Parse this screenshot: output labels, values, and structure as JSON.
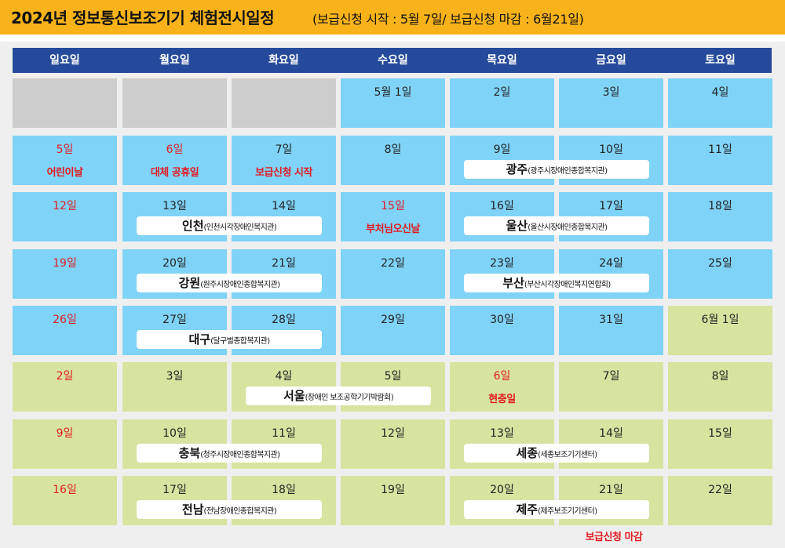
{
  "title": {
    "main": "2024년 정보통신보조기기 체험전시일정",
    "sub": "(보급신청 시작 : 5월 7일/ 보급신청 마감  : 6월21일)"
  },
  "colors": {
    "title_bar": "#f9b31a",
    "header": "#264a9b",
    "may": "#7fd3f7",
    "june": "#d6e4a0",
    "empty": "#cdcdcd",
    "holiday_red": "#e21b23"
  },
  "weekdays": [
    "일요일",
    "월요일",
    "화요일",
    "수요일",
    "목요일",
    "금요일",
    "토요일"
  ],
  "weeks": [
    [
      {
        "type": "empty"
      },
      {
        "type": "empty"
      },
      {
        "type": "empty"
      },
      {
        "label": "5월 1일",
        "month": "may"
      },
      {
        "label": "2일",
        "month": "may"
      },
      {
        "label": "3일",
        "month": "may"
      },
      {
        "label": "4일",
        "month": "may"
      }
    ],
    [
      {
        "label": "5일",
        "month": "may",
        "red": true,
        "event": "어린이날"
      },
      {
        "label": "6일",
        "month": "may",
        "red": true,
        "event": "대체 공휴일"
      },
      {
        "label": "7일",
        "month": "may",
        "event": "보급신청 시작"
      },
      {
        "label": "8일",
        "month": "may"
      },
      {
        "label": "9일",
        "month": "may"
      },
      {
        "label": "10일",
        "month": "may"
      },
      {
        "label": "11일",
        "month": "may"
      }
    ],
    [
      {
        "label": "12일",
        "month": "may",
        "red": true
      },
      {
        "label": "13일",
        "month": "may"
      },
      {
        "label": "14일",
        "month": "may"
      },
      {
        "label": "15일",
        "month": "may",
        "red": true,
        "event": "부처님오신날"
      },
      {
        "label": "16일",
        "month": "may"
      },
      {
        "label": "17일",
        "month": "may"
      },
      {
        "label": "18일",
        "month": "may"
      }
    ],
    [
      {
        "label": "19일",
        "month": "may",
        "red": true
      },
      {
        "label": "20일",
        "month": "may"
      },
      {
        "label": "21일",
        "month": "may"
      },
      {
        "label": "22일",
        "month": "may"
      },
      {
        "label": "23일",
        "month": "may"
      },
      {
        "label": "24일",
        "month": "may"
      },
      {
        "label": "25일",
        "month": "may"
      }
    ],
    [
      {
        "label": "26일",
        "month": "may",
        "red": true
      },
      {
        "label": "27일",
        "month": "may"
      },
      {
        "label": "28일",
        "month": "may"
      },
      {
        "label": "29일",
        "month": "may"
      },
      {
        "label": "30일",
        "month": "may"
      },
      {
        "label": "31일",
        "month": "may"
      },
      {
        "label": "6월 1일",
        "month": "june"
      }
    ],
    [
      {
        "label": "2일",
        "month": "june",
        "red": true
      },
      {
        "label": "3일",
        "month": "june"
      },
      {
        "label": "4일",
        "month": "june"
      },
      {
        "label": "5일",
        "month": "june"
      },
      {
        "label": "6일",
        "month": "june",
        "red": true,
        "event": "현충일"
      },
      {
        "label": "7일",
        "month": "june"
      },
      {
        "label": "8일",
        "month": "june"
      }
    ],
    [
      {
        "label": "9일",
        "month": "june",
        "red": true
      },
      {
        "label": "10일",
        "month": "june"
      },
      {
        "label": "11일",
        "month": "june"
      },
      {
        "label": "12일",
        "month": "june"
      },
      {
        "label": "13일",
        "month": "june"
      },
      {
        "label": "14일",
        "month": "june"
      },
      {
        "label": "15일",
        "month": "june"
      }
    ],
    [
      {
        "label": "16일",
        "month": "june",
        "red": true
      },
      {
        "label": "17일",
        "month": "june"
      },
      {
        "label": "18일",
        "month": "june"
      },
      {
        "label": "19일",
        "month": "june"
      },
      {
        "label": "20일",
        "month": "june"
      },
      {
        "label": "21일",
        "month": "june"
      },
      {
        "label": "22일",
        "month": "june"
      }
    ]
  ],
  "exhibitions": [
    {
      "week": 1,
      "start": 4,
      "end": 5,
      "city": "광주",
      "org": "(광주시장애인종합복지관)"
    },
    {
      "week": 2,
      "start": 1,
      "end": 2,
      "city": "인천",
      "org": "(인천시각장애인복지관)"
    },
    {
      "week": 2,
      "start": 4,
      "end": 5,
      "city": "울산",
      "org": "(울산시장애인종합복지관)"
    },
    {
      "week": 3,
      "start": 1,
      "end": 2,
      "city": "강원",
      "org": "(원주시장애인종합복지관)"
    },
    {
      "week": 3,
      "start": 4,
      "end": 5,
      "city": "부산",
      "org": "(부산시각장애인복지연합회)"
    },
    {
      "week": 4,
      "start": 1,
      "end": 2,
      "city": "대구",
      "org": "(달구벌종합복지관)"
    },
    {
      "week": 5,
      "start": 2,
      "end": 3,
      "city": "서울",
      "org": "(장애인 보조공학기기박람회)"
    },
    {
      "week": 6,
      "start": 1,
      "end": 2,
      "city": "충북",
      "org": "(청주시장애인종합복지관)"
    },
    {
      "week": 6,
      "start": 4,
      "end": 5,
      "city": "세종",
      "org": "(세종보조기기센터)"
    },
    {
      "week": 7,
      "start": 1,
      "end": 2,
      "city": "전남",
      "org": "(전남장애인종합복지관)"
    },
    {
      "week": 7,
      "start": 4,
      "end": 5,
      "city": "제주",
      "org": "(제주보조기기센터)"
    }
  ],
  "footer": {
    "deadline": "보급신청 마감"
  }
}
